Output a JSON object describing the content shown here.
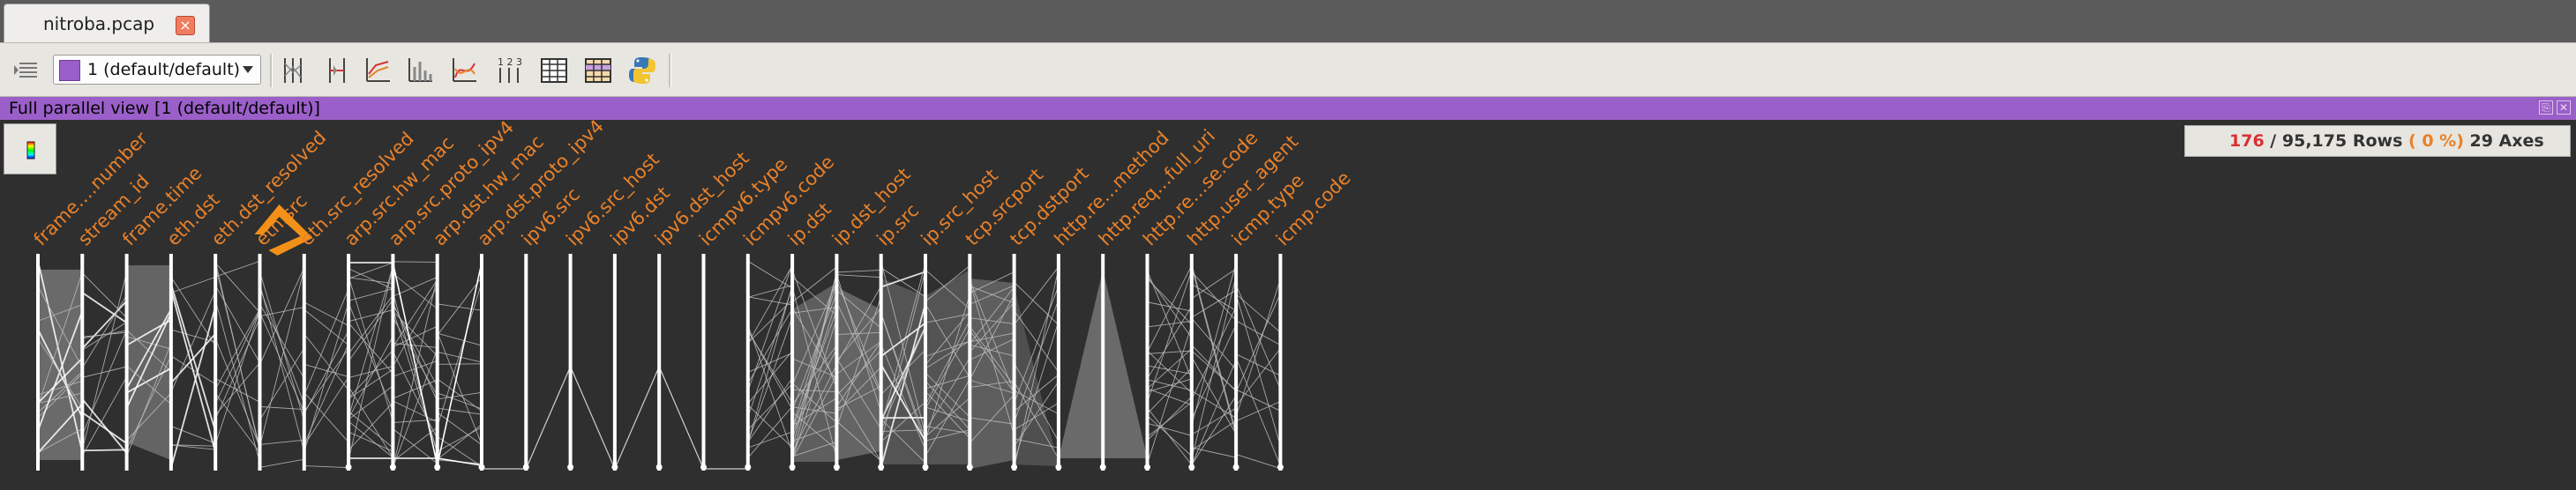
{
  "tab": {
    "title": "nitroba.pcap",
    "close_glyph": "×",
    "close_icon": "close-icon"
  },
  "toolbar": {
    "layer_selector": {
      "value": "1 (default/default)",
      "swatch_color": "#9b5fc9"
    },
    "icons": [
      "layer-list-icon",
      "axes-mode-icon",
      "axes-filter-icon",
      "scatter-plot-icon",
      "histogram-icon",
      "curves-icon",
      "axis-numbers-icon",
      "listing-icon",
      "listing-colored-icon",
      "python-icon"
    ]
  },
  "view": {
    "title": "Full parallel view [1 (default/default)]",
    "window_buttons": [
      "⎘",
      "✕"
    ]
  },
  "stats": {
    "selected": "176",
    "sep": "/",
    "total": "95,175",
    "rows_word": "Rows",
    "percent_open": "(",
    "percent": "0 %",
    "percent_close": ")",
    "axes": "29 Axes"
  },
  "colors": {
    "accent": "#9b5fc9",
    "axis_label": "#e8812a",
    "selected_axis": "#f39018",
    "lines": "#9a9a9a"
  },
  "axes": [
    {
      "label": "frame.…number"
    },
    {
      "label": "stream_id"
    },
    {
      "label": "frame.time"
    },
    {
      "label": "eth.dst"
    },
    {
      "label": "eth.dst_resolved"
    },
    {
      "label": "eth.src",
      "selected": true
    },
    {
      "label": "eth.src_resolved"
    },
    {
      "label": "arp.src.hw_mac"
    },
    {
      "label": "arp.src.proto_ipv4"
    },
    {
      "label": "arp.dst.hw_mac"
    },
    {
      "label": "arp.dst.proto_ipv4"
    },
    {
      "label": "ipv6.src"
    },
    {
      "label": "ipv6.src_host"
    },
    {
      "label": "ipv6.dst"
    },
    {
      "label": "ipv6.dst_host"
    },
    {
      "label": "icmpv6.type"
    },
    {
      "label": "icmpv6.code"
    },
    {
      "label": "ip.dst"
    },
    {
      "label": "ip.dst_host"
    },
    {
      "label": "ip.src"
    },
    {
      "label": "ip.src_host"
    },
    {
      "label": "tcp.srcport"
    },
    {
      "label": "tcp.dstport"
    },
    {
      "label": "http.re…method"
    },
    {
      "label": "http.req…full_uri"
    },
    {
      "label": "http.re…se.code"
    },
    {
      "label": "http.user_agent"
    },
    {
      "label": "icmp.type"
    },
    {
      "label": "icmp.code"
    }
  ]
}
